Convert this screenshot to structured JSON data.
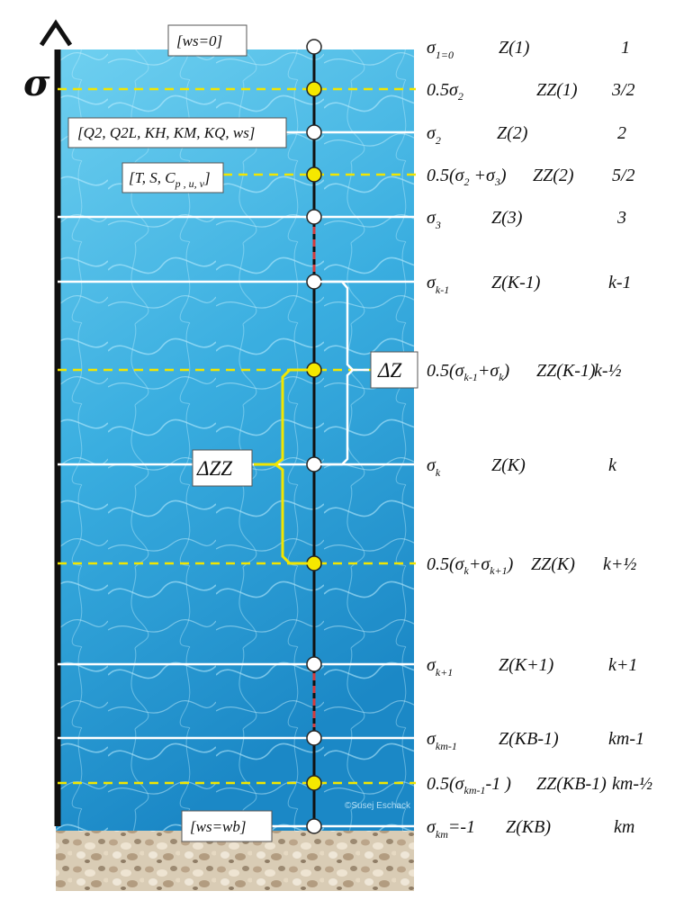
{
  "axis": {
    "symbol": "σ"
  },
  "boxes": {
    "ws_top": "[ws=0]",
    "ws_bottom": "[ws=wb]",
    "q_vars": "[Q2, Q2L, KH, KM, KQ, ws]",
    "t_vars": {
      "main": "[T, S, C",
      "sub": "p , u, v",
      "close": "]"
    },
    "delta_z": "ΔZ",
    "delta_zz": "ΔZZ"
  },
  "levels": [
    {
      "kind": "full",
      "sigma": {
        "main": "σ",
        "sub": "1=0"
      },
      "z": "Z(1)",
      "k": "1"
    },
    {
      "kind": "half",
      "sigma": {
        "pre": "0.5σ",
        "sub": "2",
        "post": ""
      },
      "z": "ZZ(1)",
      "k": "3/2"
    },
    {
      "kind": "full",
      "sigma": {
        "main": "σ",
        "sub": "2"
      },
      "z": "Z(2)",
      "k": "2"
    },
    {
      "kind": "half",
      "sigma": {
        "pre": "0.5(σ",
        "sub": "2",
        "mid": " +σ",
        "sub2": "3",
        "post": ")"
      },
      "z": "ZZ(2)",
      "k": "5/2"
    },
    {
      "kind": "full",
      "sigma": {
        "main": "σ",
        "sub": "3"
      },
      "z": "Z(3)",
      "k": "3"
    },
    {
      "kind": "full",
      "sigma": {
        "main": "σ",
        "sub": "k-1"
      },
      "z": "Z(K-1)",
      "k": "k-1"
    },
    {
      "kind": "half",
      "sigma": {
        "pre": "0.5(σ",
        "sub": "k-1",
        "mid": "+σ",
        "sub2": "k",
        "post": ")"
      },
      "z": "ZZ(K-1)",
      "k": "k-½"
    },
    {
      "kind": "full",
      "sigma": {
        "main": "σ",
        "sub": "k"
      },
      "z": "Z(K)",
      "k": "k"
    },
    {
      "kind": "half",
      "sigma": {
        "pre": "0.5(σ",
        "sub": "k",
        "mid": "+σ",
        "sub2": "k+1",
        "post": ")"
      },
      "z": "ZZ(K)",
      "k": "k+½"
    },
    {
      "kind": "full",
      "sigma": {
        "main": "σ",
        "sub": "k+1"
      },
      "z": "Z(K+1)",
      "k": "k+1"
    },
    {
      "kind": "full",
      "sigma": {
        "main": "σ",
        "sub": "km-1"
      },
      "z": "Z(KB-1)",
      "k": "km-1"
    },
    {
      "kind": "half",
      "sigma": {
        "pre": "0.5(σ",
        "sub": "km-1",
        "mid": "-1 )",
        "sub2": "",
        "post": ""
      },
      "z": "ZZ(KB-1)",
      "k": "km-½"
    },
    {
      "kind": "full",
      "sigma": {
        "main": "σ",
        "sub": "km",
        "post": "=-1"
      },
      "z": "Z(KB)",
      "k": "km"
    }
  ],
  "watermark": "©Susej Eschack",
  "colors": {
    "water_light": "#5ec4ea",
    "water_dark": "#1a8cc8",
    "half_line": "#f2e600",
    "half_node": "#f5e800",
    "full_line": "#ffffff",
    "red_dash": "#d63a3a",
    "gravel": "#d8cbb4"
  }
}
